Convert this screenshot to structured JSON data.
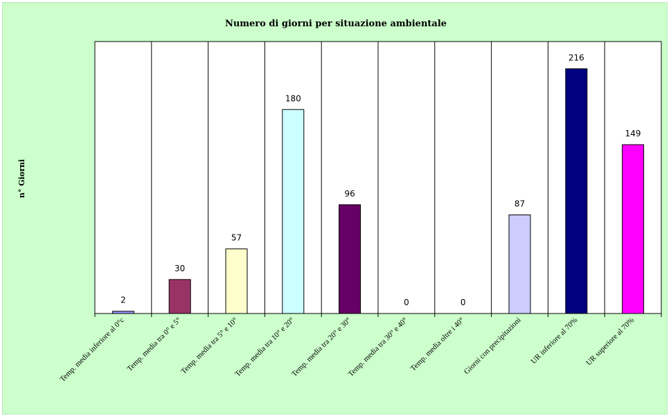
{
  "chart_data": {
    "type": "bar",
    "title": "Numero di giorni per situazione ambientale",
    "xlabel": "",
    "ylabel": "n° Giorni",
    "ylim": [
      0,
      240
    ],
    "grid": false,
    "legend": "none",
    "categories": [
      "Temp. media inferiore al 0°c",
      "Temp. media tra 0° e 5°",
      "Temp. media tra 5° e 10°",
      "Temp. media tra 10° e 20°",
      "Temp. media tra 20° e 30°",
      "Temp. media tra 30° e 40°",
      "Temp. media oltre i 40°",
      "Giorni con precipitazioni",
      "UR inferiore al 70%",
      "UR superiore al 70%"
    ],
    "values": [
      2,
      30,
      57,
      180,
      96,
      0,
      0,
      87,
      216,
      149
    ],
    "bar_colors": [
      "#9999ff",
      "#993366",
      "#ffffcc",
      "#ccffff",
      "#660066",
      "#ff8080",
      "#0066cc",
      "#ccccff",
      "#000080",
      "#ff00ff"
    ],
    "background_color": "#ccffcc",
    "plot_background_color": "#ffffff"
  }
}
